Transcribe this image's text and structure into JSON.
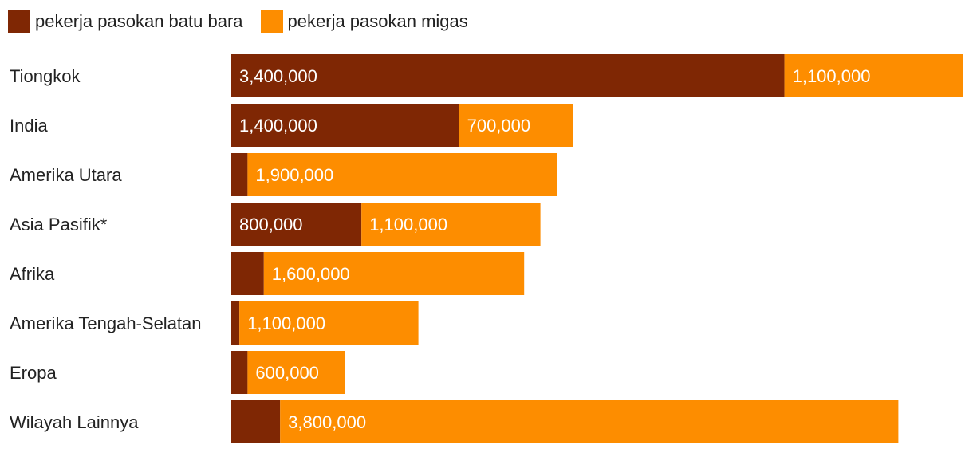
{
  "colors": {
    "coal": "#7f2704",
    "oilgas": "#fd8d00"
  },
  "chart_data": {
    "type": "bar",
    "orientation": "horizontal",
    "stacked": true,
    "legend_position": "top-left",
    "grid": false,
    "categories": [
      "Tiongkok",
      "India",
      "Amerika Utara",
      "Asia Pasifik*",
      "Afrika",
      "Amerika Tengah-Selatan",
      "Eropa",
      "Wilayah Lainnya"
    ],
    "series": [
      {
        "name": "pekerja pasokan batu bara",
        "color_key": "coal",
        "values": [
          3400000,
          1400000,
          100000,
          800000,
          200000,
          50000,
          100000,
          300000
        ],
        "labels": [
          "3,400,000",
          "1,400,000",
          "",
          "800,000",
          "",
          "",
          "",
          ""
        ]
      },
      {
        "name": "pekerja pasokan migas",
        "color_key": "oilgas",
        "values": [
          1100000,
          700000,
          1900000,
          1100000,
          1600000,
          1100000,
          600000,
          3800000
        ],
        "labels": [
          "1,100,000",
          "700,000",
          "1,900,000",
          "1,100,000",
          "1,600,000",
          "1,100,000",
          "600,000",
          "3,800,000"
        ]
      }
    ],
    "xlim": [
      0,
      4500000
    ]
  }
}
